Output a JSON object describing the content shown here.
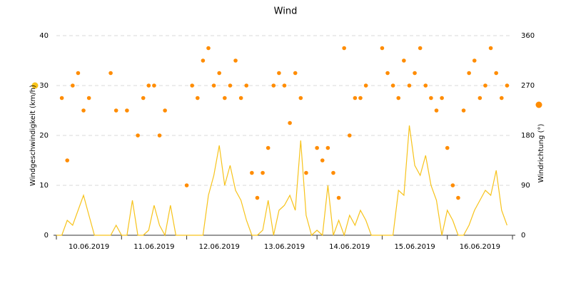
{
  "chart_data": {
    "type": "line",
    "title": "Wind",
    "categories": [
      null,
      null,
      null,
      null,
      null,
      null,
      "10.06.2019",
      null,
      null,
      null,
      null,
      null,
      null,
      null,
      null,
      null,
      null,
      null,
      "11.06.2019",
      null,
      null,
      null,
      null,
      null,
      null,
      null,
      null,
      null,
      null,
      null,
      "12.06.2019",
      null,
      null,
      null,
      null,
      null,
      null,
      null,
      null,
      null,
      null,
      null,
      "13.06.2019",
      null,
      null,
      null,
      null,
      null,
      null,
      null,
      null,
      null,
      null,
      null,
      "14.06.2019",
      null,
      null,
      null,
      null,
      null,
      null,
      null,
      null,
      null,
      null,
      null,
      "15.06.2019",
      null,
      null,
      null,
      null,
      null,
      null,
      null,
      null,
      null,
      null,
      null,
      "16.06.2019",
      null,
      null,
      null,
      null,
      null
    ],
    "series": [
      {
        "name": "Windgeschwindigkeit (km/h)",
        "type": "line",
        "color": "#f7c31b",
        "values": [
          0,
          0,
          3,
          2,
          5,
          8,
          4,
          0,
          0,
          0,
          0,
          2,
          0,
          0,
          7,
          0,
          0,
          1,
          6,
          2,
          0,
          6,
          0,
          0,
          0,
          0,
          0,
          0,
          8,
          12,
          18,
          10,
          14,
          9,
          7,
          3,
          0,
          0,
          1,
          7,
          0,
          5,
          6,
          8,
          5,
          19,
          4,
          0,
          1,
          0,
          10,
          0,
          3,
          0,
          4,
          2,
          5,
          3,
          0,
          0,
          0,
          0,
          0,
          9,
          8,
          22,
          14,
          12,
          16,
          10,
          7,
          0,
          5,
          3,
          0,
          0,
          2,
          5,
          7,
          9,
          8,
          13,
          5,
          2
        ]
      },
      {
        "name": "Windrichtung (°)",
        "type": "scatter",
        "color": "#ff8c00",
        "axis": "y2",
        "values": [
          null,
          247.5,
          135,
          270,
          292.5,
          225,
          247.5,
          null,
          null,
          null,
          292.5,
          225,
          null,
          225,
          null,
          180,
          247.5,
          270,
          270,
          180,
          225,
          null,
          null,
          null,
          90,
          270,
          247.5,
          315,
          337.5,
          270,
          292.5,
          247.5,
          270,
          315,
          247.5,
          270,
          112.5,
          67.5,
          112.5,
          157.5,
          270,
          292.5,
          270,
          202.5,
          292.5,
          247.5,
          112.5,
          null,
          157.5,
          135,
          157.5,
          112.5,
          67.5,
          337.5,
          180,
          247.5,
          247.5,
          270,
          null,
          null,
          337.5,
          292.5,
          270,
          247.5,
          315,
          270,
          292.5,
          337.5,
          270,
          247.5,
          225,
          247.5,
          157.5,
          90,
          67.5,
          225,
          292.5,
          315,
          247.5,
          270,
          337.5,
          292.5,
          247.5,
          270
        ]
      }
    ],
    "ylim": [
      0,
      40
    ],
    "yticks": [
      0,
      10,
      20,
      30,
      40
    ],
    "y2lim": [
      0,
      360
    ],
    "y2ticks": [
      0,
      90,
      180,
      270,
      360
    ],
    "grid": true
  }
}
